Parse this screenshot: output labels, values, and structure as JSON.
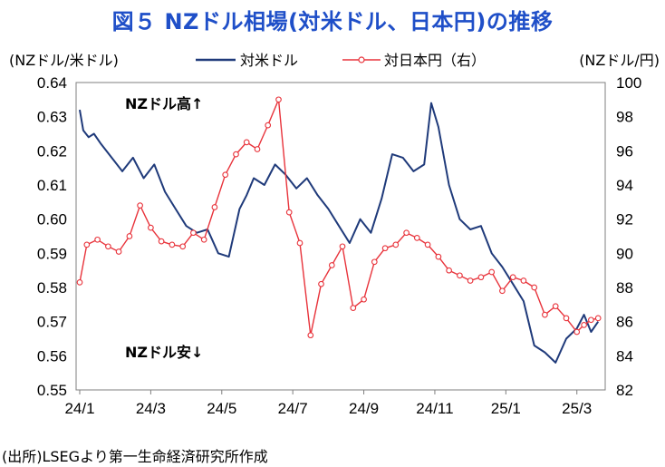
{
  "title": "図５ NZドル相場(対米ドル、日本円)の推移",
  "source": "(出所)LSEGより第一生命経済研究所作成",
  "chart_data": {
    "type": "line",
    "left_axis_label": "(NZドル/米ドル)",
    "right_axis_label": "(NZドル/円)",
    "x_ticks": [
      "24/1",
      "24/3",
      "24/5",
      "24/7",
      "24/9",
      "24/11",
      "25/1",
      "25/3"
    ],
    "y_left": {
      "range": [
        0.55,
        0.64
      ],
      "ticks": [
        "0.55",
        "0.56",
        "0.57",
        "0.58",
        "0.59",
        "0.60",
        "0.61",
        "0.62",
        "0.63",
        "0.64"
      ]
    },
    "y_right": {
      "range": [
        82,
        100
      ],
      "ticks": [
        "82",
        "84",
        "86",
        "88",
        "90",
        "92",
        "94",
        "96",
        "98",
        "100"
      ]
    },
    "annotations": {
      "high": "NZドル高↑",
      "low": "NZドル安↓"
    },
    "grid": false,
    "legend_position": "top",
    "series": [
      {
        "name": "対米ドル",
        "axis": "left",
        "color": "#1f3a7a",
        "x": [
          0,
          0.1,
          0.25,
          0.4,
          0.6,
          0.9,
          1.2,
          1.5,
          1.8,
          2.1,
          2.4,
          2.7,
          3.0,
          3.3,
          3.6,
          3.9,
          4.2,
          4.5,
          4.7,
          4.9,
          5.2,
          5.5,
          5.8,
          6.1,
          6.4,
          6.7,
          7.0,
          7.3,
          7.6,
          7.9,
          8.2,
          8.5,
          8.8,
          9.1,
          9.4,
          9.7,
          9.9,
          10.1,
          10.4,
          10.7,
          11.0,
          11.3,
          11.6,
          11.9,
          12.2,
          12.5,
          12.8,
          13.1,
          13.4,
          13.7,
          14.0,
          14.2,
          14.4,
          14.6
        ],
        "y": [
          0.632,
          0.626,
          0.624,
          0.625,
          0.622,
          0.618,
          0.614,
          0.618,
          0.612,
          0.616,
          0.608,
          0.603,
          0.598,
          0.596,
          0.597,
          0.59,
          0.589,
          0.603,
          0.607,
          0.612,
          0.61,
          0.616,
          0.613,
          0.609,
          0.612,
          0.607,
          0.603,
          0.598,
          0.593,
          0.6,
          0.596,
          0.606,
          0.619,
          0.618,
          0.614,
          0.616,
          0.634,
          0.627,
          0.61,
          0.6,
          0.597,
          0.598,
          0.59,
          0.586,
          0.581,
          0.576,
          0.563,
          0.561,
          0.558,
          0.565,
          0.568,
          0.572,
          0.567,
          0.57
        ]
      },
      {
        "name": "対日本円（右）",
        "axis": "right",
        "color": "#e8333b",
        "x": [
          0,
          0.2,
          0.5,
          0.8,
          1.1,
          1.4,
          1.7,
          2.0,
          2.3,
          2.6,
          2.9,
          3.2,
          3.5,
          3.8,
          4.1,
          4.4,
          4.7,
          5.0,
          5.3,
          5.6,
          5.9,
          6.2,
          6.5,
          6.8,
          7.1,
          7.4,
          7.7,
          8.0,
          8.3,
          8.6,
          8.9,
          9.2,
          9.5,
          9.8,
          10.1,
          10.4,
          10.7,
          11.0,
          11.3,
          11.6,
          11.9,
          12.2,
          12.5,
          12.8,
          13.1,
          13.4,
          13.7,
          14.0,
          14.2,
          14.4,
          14.6
        ],
        "y": [
          88.3,
          90.5,
          90.8,
          90.4,
          90.1,
          91.0,
          92.8,
          91.5,
          90.7,
          90.5,
          90.4,
          91.2,
          90.8,
          92.7,
          94.6,
          95.8,
          96.5,
          96.1,
          97.5,
          99.0,
          92.4,
          90.6,
          85.2,
          88.2,
          89.3,
          90.4,
          86.8,
          87.3,
          89.5,
          90.3,
          90.5,
          91.2,
          90.9,
          90.5,
          89.8,
          89.0,
          88.7,
          88.4,
          88.6,
          88.9,
          87.8,
          88.6,
          88.4,
          88.0,
          86.4,
          86.9,
          86.2,
          85.4,
          85.8,
          86.1,
          86.2
        ]
      }
    ]
  }
}
